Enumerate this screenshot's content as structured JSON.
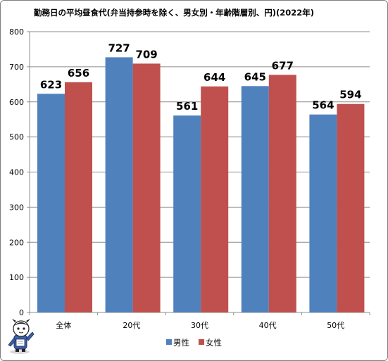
{
  "chart_data": {
    "type": "bar",
    "title": "勤務日の平均昼食代(弁当持参時を除く、男女別・年齢階層別、円)(2022年)",
    "categories": [
      "全体",
      "20代",
      "30代",
      "40代",
      "50代"
    ],
    "series": [
      {
        "name": "男性",
        "color": "#4f81bd",
        "values": [
          623,
          727,
          561,
          645,
          564
        ]
      },
      {
        "name": "女性",
        "color": "#c0504d",
        "values": [
          656,
          709,
          644,
          677,
          594
        ]
      }
    ],
    "ylim": [
      0,
      800
    ],
    "yticks": [
      0,
      100,
      200,
      300,
      400,
      500,
      600,
      700,
      800
    ],
    "grid": true,
    "legend_position": "bottom",
    "data_labels": true
  },
  "mascot": {
    "icon": "mascot-character-icon"
  }
}
